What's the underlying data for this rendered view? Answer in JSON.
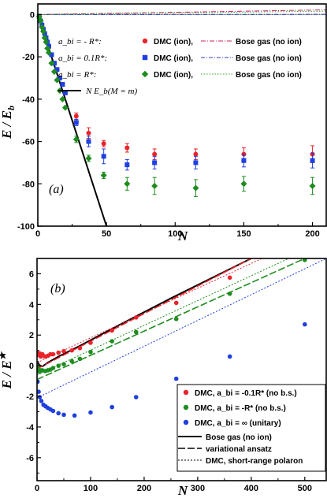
{
  "chart_data": [
    {
      "type": "scatter",
      "panel_label": "(a)",
      "xlabel": "N",
      "ylabel": "E / E_b",
      "xlim": [
        0,
        210
      ],
      "ylim": [
        -100,
        5
      ],
      "xticks": [
        "0",
        "50",
        "100",
        "150",
        "200"
      ],
      "yticks": [
        "0",
        "-20",
        "-40",
        "-60",
        "-80",
        "-100"
      ],
      "legend": [
        {
          "param": "a_bi = - R*:",
          "dmc": "DMC (ion),",
          "bose": "Bose gas (no ion)"
        },
        {
          "param": "a_bi = 0.1R*:",
          "dmc": "DMC (ion),",
          "bose": "Bose gas (no ion)"
        },
        {
          "param": "a_bi = R*:",
          "dmc": "DMC (ion),",
          "bose": "Bose gas (no ion)"
        },
        {
          "param": "",
          "dmc": "N E_b(M = m)",
          "bose": ""
        }
      ],
      "series": [
        {
          "name": "DMC (ion), a_bi = -R*",
          "color": "#e8242c",
          "marker": "circle",
          "x": [
            1,
            2,
            3,
            4,
            5,
            6,
            7,
            8,
            10,
            12,
            14,
            16,
            18,
            20,
            28,
            37,
            48,
            65,
            85,
            115,
            150,
            200
          ],
          "y": [
            -1,
            -3,
            -5,
            -7,
            -9,
            -11,
            -13,
            -15,
            -19,
            -23,
            -26,
            -30,
            -33,
            -37,
            -48,
            -56,
            -61,
            -63,
            -66,
            -66,
            -66,
            -66
          ],
          "err": [
            0,
            0,
            0,
            0,
            0,
            0,
            0,
            0,
            0,
            0,
            0,
            0,
            0,
            0,
            1.5,
            2.5,
            1.5,
            2,
            2.5,
            2.5,
            3,
            4
          ]
        },
        {
          "name": "DMC (ion), a_bi = 0.1R*",
          "color": "#1f3fe0",
          "marker": "square",
          "x": [
            1,
            2,
            3,
            4,
            5,
            6,
            7,
            8,
            10,
            12,
            14,
            16,
            18,
            20,
            28,
            37,
            48,
            65,
            85,
            115,
            150,
            200
          ],
          "y": [
            -1,
            -3,
            -5,
            -7,
            -9,
            -11,
            -13,
            -15,
            -19,
            -23,
            -26,
            -30,
            -33,
            -37,
            -51,
            -60,
            -67,
            -71,
            -70,
            -70,
            -69,
            -69
          ],
          "err": [
            0,
            0,
            0,
            0,
            0,
            0,
            0,
            0,
            0,
            0,
            0,
            0,
            0,
            0,
            1.5,
            2.5,
            3.5,
            2.5,
            3,
            3,
            3,
            3.5
          ]
        },
        {
          "name": "DMC (ion), a_bi = R*",
          "color": "#1e8c1e",
          "marker": "diamond",
          "x": [
            1,
            2,
            3,
            4,
            5,
            6,
            7,
            8,
            10,
            12,
            14,
            16,
            18,
            20,
            28,
            37,
            48,
            65,
            85,
            115,
            150,
            200
          ],
          "y": [
            -1,
            -3,
            -6,
            -8,
            -11,
            -13,
            -16,
            -18,
            -23,
            -27,
            -31,
            -36,
            -40,
            -44,
            -59,
            -68,
            -76,
            -80,
            -81,
            -82,
            -80,
            -81
          ],
          "err": [
            0,
            0,
            0,
            0,
            0,
            0,
            0,
            0,
            0,
            0,
            0,
            0,
            0,
            0,
            1.5,
            1.5,
            1.5,
            3,
            4,
            4,
            3.5,
            4
          ]
        },
        {
          "name": "Bose gas (no ion), a_bi = -R*",
          "color": "#d02060",
          "style": "dashdot",
          "x": [
            0,
            210
          ],
          "y": [
            0,
            2.2
          ]
        },
        {
          "name": "Bose gas (no ion), a_bi = 0.1R*",
          "color": "#2b3fb8",
          "style": "dashdot2",
          "x": [
            0,
            210
          ],
          "y": [
            0,
            0.1
          ]
        },
        {
          "name": "Bose gas (no ion), a_bi = R*",
          "color": "#2ca02c",
          "style": "dotted",
          "x": [
            0,
            210
          ],
          "y": [
            0,
            1.6
          ]
        },
        {
          "name": "N E_b(M = m)",
          "color": "#000000",
          "style": "solid",
          "x": [
            0,
            50
          ],
          "y": [
            0,
            -100
          ]
        }
      ]
    },
    {
      "type": "scatter",
      "panel_label": "(b)",
      "xlabel": "N",
      "ylabel": "E / E*",
      "xlim": [
        0,
        540
      ],
      "ylim": [
        -7.5,
        7
      ],
      "xticks": [
        "0",
        "100",
        "200",
        "300",
        "400",
        "500"
      ],
      "yticks": [
        "6",
        "4",
        "2",
        "0",
        "-2",
        "-4",
        "-6"
      ],
      "legend": [
        "DMC, a_bi = -0.1R* (no b.s.)",
        "DMC, a_bi = -R* (no b.s.)",
        "DMC, a_bi = ∞ (unitary)",
        "Bose gas (no ion)",
        "variational ansatz",
        "DMC, short-range polaron"
      ],
      "series": [
        {
          "name": "DMC, a_bi = -0.1R* (no b.s.)",
          "color": "#e8242c",
          "marker": "circle",
          "x": [
            1,
            2,
            3,
            5,
            7,
            10,
            15,
            20,
            25,
            30,
            40,
            50,
            65,
            80,
            100,
            140,
            185,
            260,
            360
          ],
          "y": [
            0.85,
            0.75,
            0.7,
            0.8,
            0.6,
            0.75,
            0.6,
            0.65,
            0.75,
            0.75,
            0.85,
            0.95,
            1.0,
            1.15,
            1.5,
            2.3,
            3.15,
            4.1,
            5.75
          ]
        },
        {
          "name": "DMC, a_bi = -R* (no b.s.)",
          "color": "#1e8c1e",
          "marker": "circle",
          "x": [
            1,
            2,
            3,
            5,
            7,
            10,
            15,
            20,
            25,
            30,
            40,
            50,
            65,
            80,
            100,
            140,
            185,
            260,
            360,
            500
          ],
          "y": [
            -0.05,
            -0.25,
            -0.35,
            -0.4,
            -0.3,
            -0.3,
            -0.35,
            -0.3,
            -0.25,
            -0.15,
            0.0,
            0.1,
            0.3,
            0.45,
            0.9,
            1.6,
            2.2,
            3.05,
            4.7,
            6.9
          ]
        },
        {
          "name": "DMC, a_bi = ∞ (unitary)",
          "color": "#1f3fe0",
          "marker": "circle",
          "x": [
            1,
            3,
            5,
            8,
            12,
            16,
            20,
            25,
            30,
            40,
            50,
            70,
            100,
            140,
            185,
            260,
            360,
            500
          ],
          "y": [
            -1.05,
            -1.7,
            -2.05,
            -2.3,
            -2.55,
            -2.65,
            -2.75,
            -2.85,
            -2.95,
            -3.1,
            -3.2,
            -3.25,
            -3.05,
            -2.7,
            -2.05,
            -0.85,
            0.6,
            2.7
          ]
        },
        {
          "name": "Bose gas (no ion)",
          "color": "#000000",
          "style": "solid",
          "x": [
            1,
            4,
            10,
            20,
            40,
            80,
            150,
            250,
            400
          ],
          "y": [
            0.3,
            0.05,
            -0.05,
            0.2,
            0.6,
            1.3,
            2.6,
            4.4,
            7.0
          ]
        },
        {
          "name": "variational ansatz",
          "color": "#e8242c",
          "style": "dash",
          "x": [
            0,
            400
          ],
          "y": [
            -0.2,
            7.0
          ]
        },
        {
          "name": "variational ansatz",
          "color": "#1e8c1e",
          "style": "dash",
          "x": [
            0,
            500
          ],
          "y": [
            -0.9,
            7.0
          ]
        },
        {
          "name": "DMC, short-range polaron",
          "color": "#e8242c",
          "style": "dot",
          "x": [
            0,
            420
          ],
          "y": [
            0.2,
            7.0
          ]
        },
        {
          "name": "DMC, short-range polaron",
          "color": "#1e8c1e",
          "style": "dot",
          "x": [
            0,
            470
          ],
          "y": [
            -0.6,
            7.0
          ]
        },
        {
          "name": "DMC, short-range polaron",
          "color": "#1f3fe0",
          "style": "dot",
          "x": [
            0,
            540
          ],
          "y": [
            -2.1,
            7.0
          ]
        }
      ]
    }
  ]
}
